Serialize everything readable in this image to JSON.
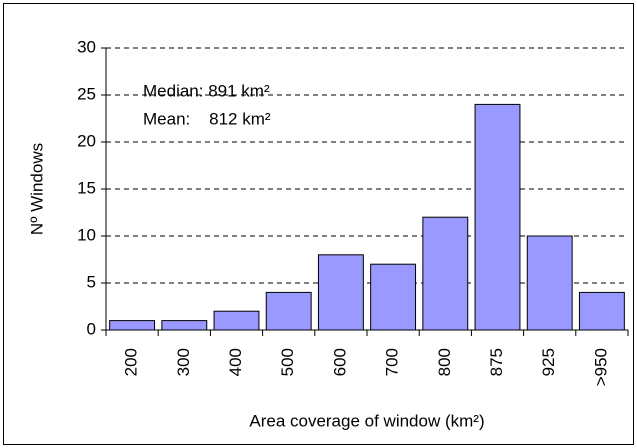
{
  "chart_data": {
    "type": "bar",
    "categories": [
      "200",
      "300",
      "400",
      "500",
      "600",
      "700",
      "800",
      "875",
      "925",
      ">950"
    ],
    "values": [
      1,
      1,
      2,
      4,
      8,
      7,
      12,
      24,
      10,
      4
    ],
    "color": "#9999ff",
    "ylim": [
      0,
      30
    ],
    "yticks": [
      0,
      5,
      10,
      15,
      20,
      25,
      30
    ],
    "grid": true,
    "x_label": "Area coverage of window (km²)",
    "y_label": "Nº Windows",
    "annotations": [
      "Median: 891 km²",
      "Mean:    812 km²"
    ]
  }
}
